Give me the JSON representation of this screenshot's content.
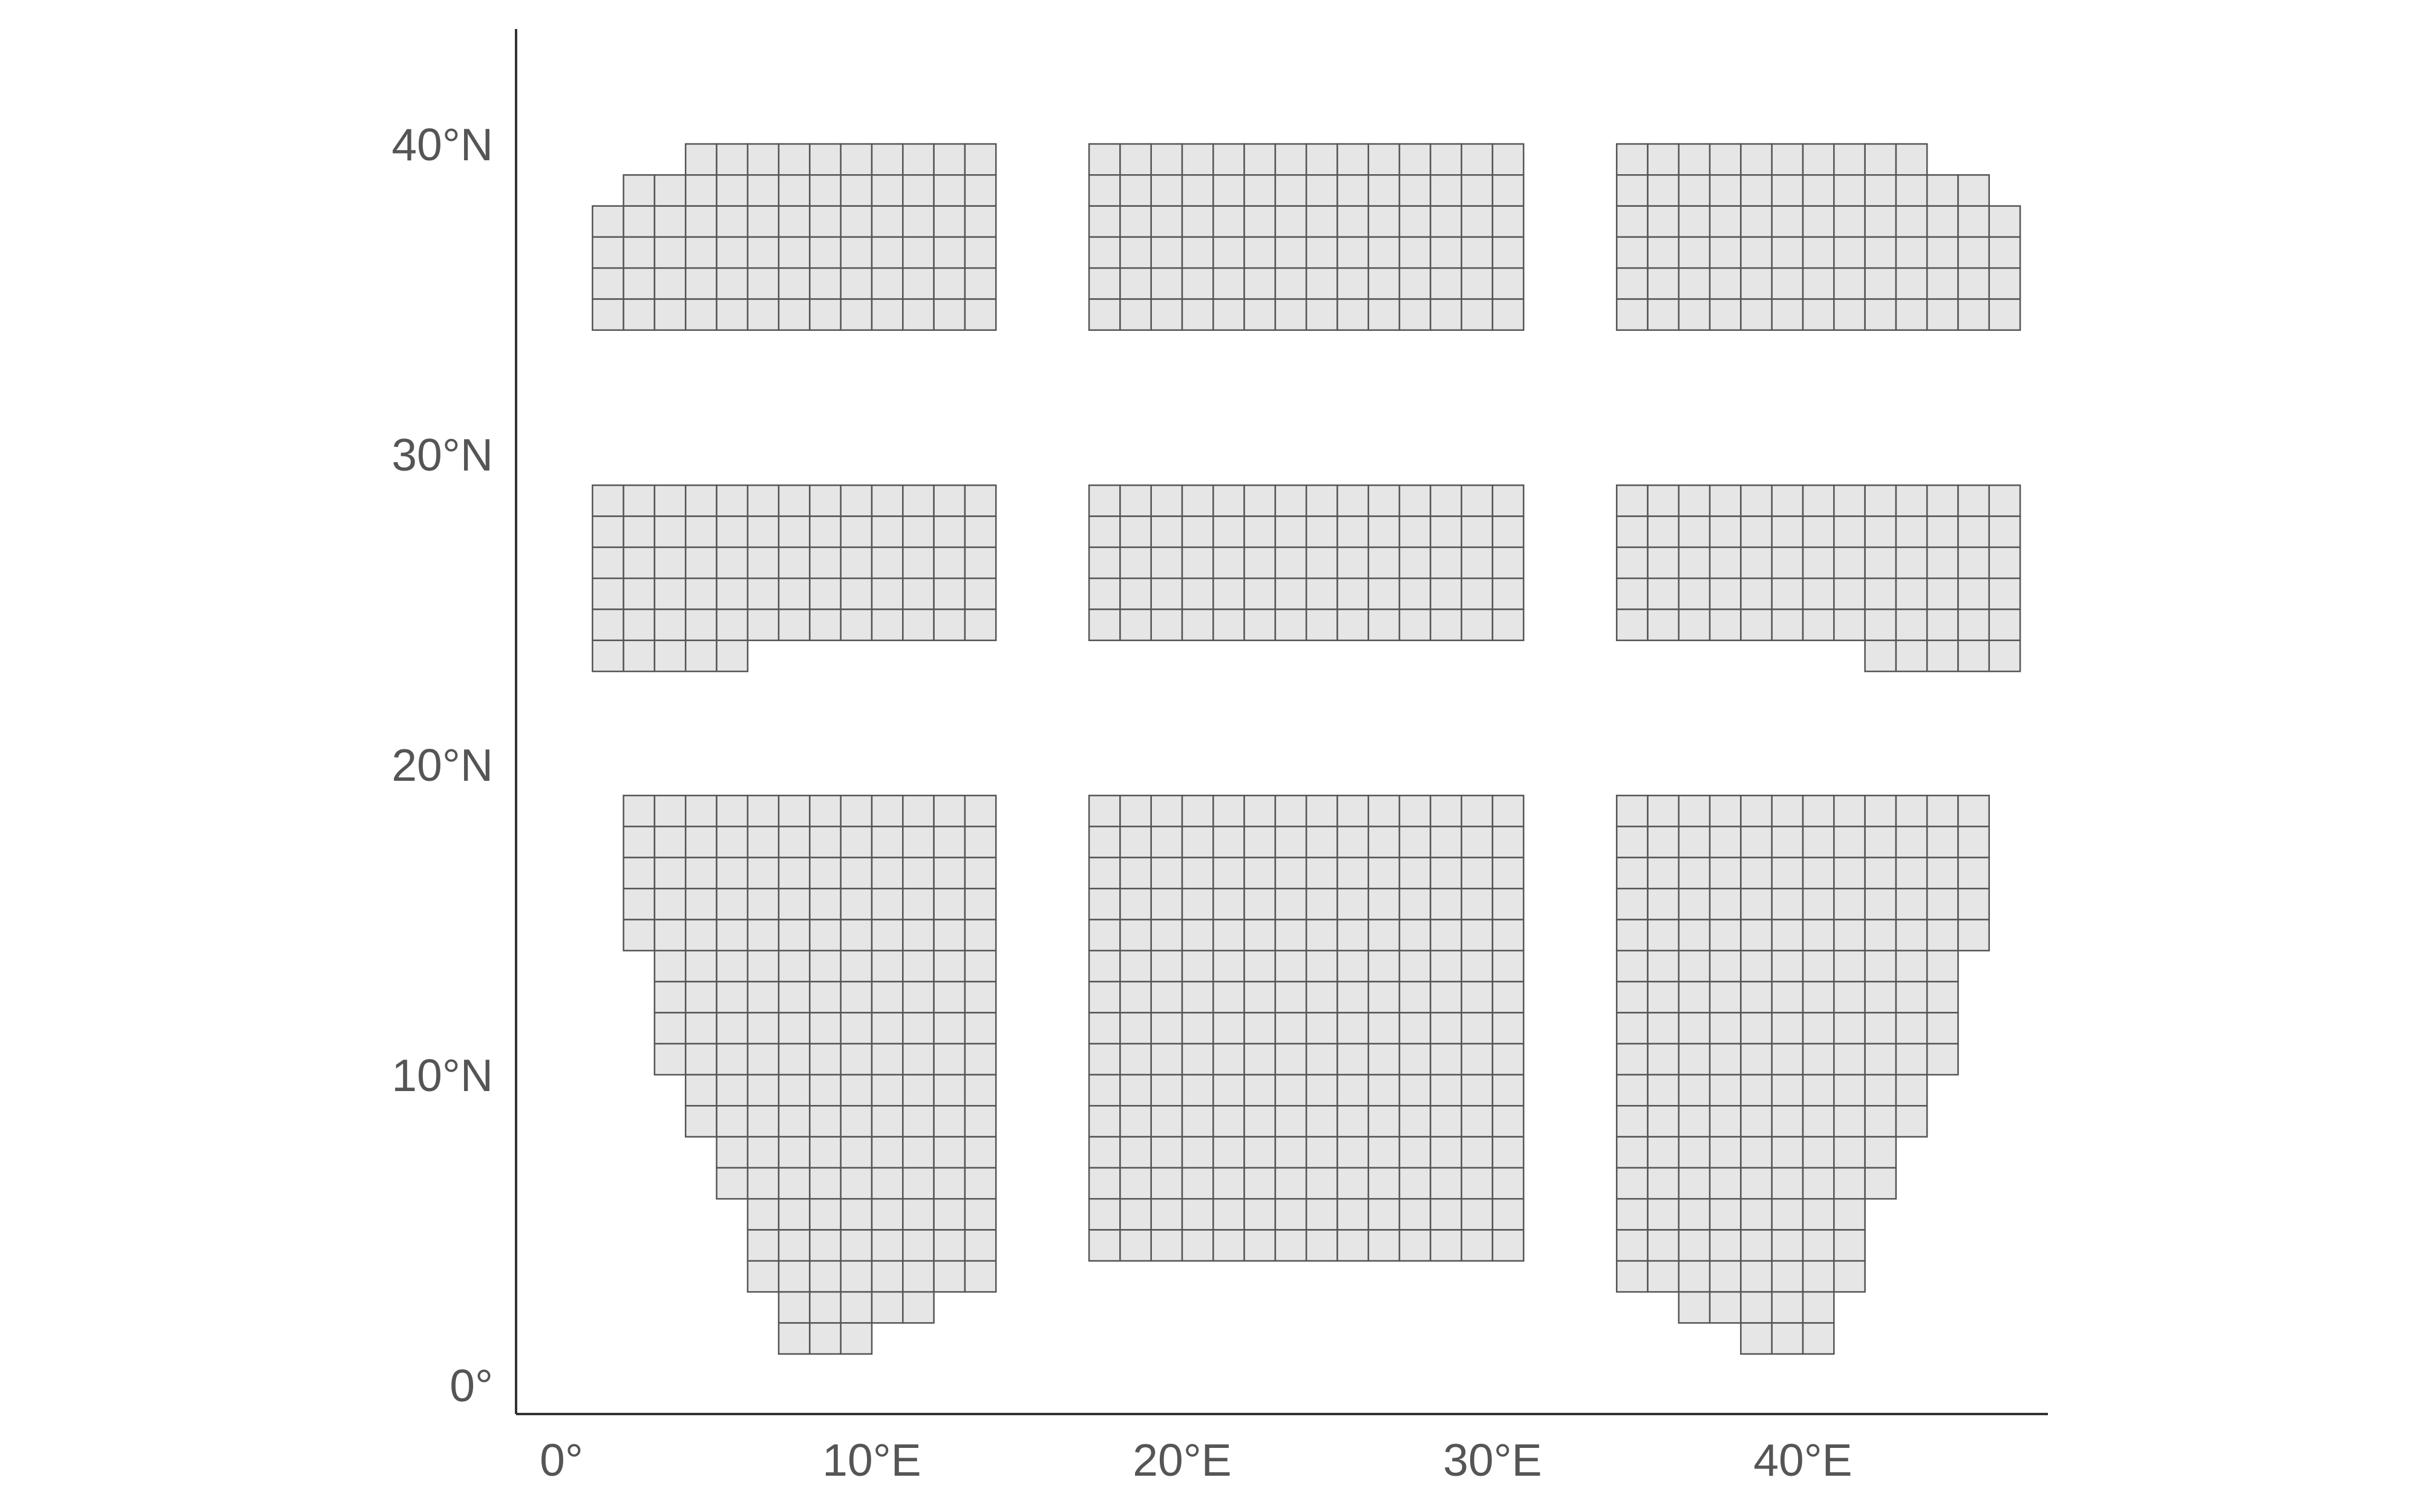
{
  "map": {
    "x_axis": {
      "ticks": [
        {
          "value": 0,
          "label": "0°"
        },
        {
          "value": 10,
          "label": "10°E"
        },
        {
          "value": 20,
          "label": "20°E"
        },
        {
          "value": 30,
          "label": "30°E"
        },
        {
          "value": 40,
          "label": "40°E"
        }
      ],
      "range": [
        -1,
        50
      ]
    },
    "y_axis": {
      "ticks": [
        {
          "value": 0,
          "label": "0°"
        },
        {
          "value": 10,
          "label": "10°N"
        },
        {
          "value": 20,
          "label": "20°N"
        },
        {
          "value": 30,
          "label": "30°N"
        },
        {
          "value": 40,
          "label": "40°N"
        }
      ],
      "range": [
        -1,
        43
      ]
    },
    "colors": {
      "cell_fill": "#e6e6e6",
      "cell_stroke": "#555555",
      "axis": "#333333",
      "label": "#555555"
    },
    "sections": [
      {
        "name": "top-left",
        "rows": [
          {
            "lat": 39,
            "lon_from": 4,
            "lon_to": 13
          },
          {
            "lat": 38,
            "lon_from": 2,
            "lon_to": 13
          },
          {
            "lat": 37,
            "lon_from": 1,
            "lon_to": 13
          },
          {
            "lat": 36,
            "lon_from": 1,
            "lon_to": 13
          },
          {
            "lat": 35,
            "lon_from": 1,
            "lon_to": 13
          },
          {
            "lat": 34,
            "lon_from": 1,
            "lon_to": 13
          }
        ]
      },
      {
        "name": "top-center",
        "rows": [
          {
            "lat": 39,
            "lon_from": 17,
            "lon_to": 30
          },
          {
            "lat": 38,
            "lon_from": 17,
            "lon_to": 30
          },
          {
            "lat": 37,
            "lon_from": 17,
            "lon_to": 30
          },
          {
            "lat": 36,
            "lon_from": 17,
            "lon_to": 30
          },
          {
            "lat": 35,
            "lon_from": 17,
            "lon_to": 30
          },
          {
            "lat": 34,
            "lon_from": 17,
            "lon_to": 30
          }
        ]
      },
      {
        "name": "top-right",
        "rows": [
          {
            "lat": 39,
            "lon_from": 34,
            "lon_to": 43
          },
          {
            "lat": 38,
            "lon_from": 34,
            "lon_to": 45
          },
          {
            "lat": 37,
            "lon_from": 34,
            "lon_to": 46
          },
          {
            "lat": 36,
            "lon_from": 34,
            "lon_to": 46
          },
          {
            "lat": 35,
            "lon_from": 34,
            "lon_to": 46
          },
          {
            "lat": 34,
            "lon_from": 34,
            "lon_to": 46
          }
        ]
      },
      {
        "name": "middle-left",
        "rows": [
          {
            "lat": 28,
            "lon_from": 1,
            "lon_to": 13
          },
          {
            "lat": 27,
            "lon_from": 1,
            "lon_to": 13
          },
          {
            "lat": 26,
            "lon_from": 1,
            "lon_to": 13
          },
          {
            "lat": 25,
            "lon_from": 1,
            "lon_to": 13
          },
          {
            "lat": 24,
            "lon_from": 1,
            "lon_to": 13
          },
          {
            "lat": 23,
            "lon_from": 1,
            "lon_to": 5
          }
        ]
      },
      {
        "name": "middle-center",
        "rows": [
          {
            "lat": 28,
            "lon_from": 17,
            "lon_to": 30
          },
          {
            "lat": 27,
            "lon_from": 17,
            "lon_to": 30
          },
          {
            "lat": 26,
            "lon_from": 17,
            "lon_to": 30
          },
          {
            "lat": 25,
            "lon_from": 17,
            "lon_to": 30
          },
          {
            "lat": 24,
            "lon_from": 17,
            "lon_to": 30
          }
        ]
      },
      {
        "name": "middle-right",
        "rows": [
          {
            "lat": 28,
            "lon_from": 34,
            "lon_to": 46
          },
          {
            "lat": 27,
            "lon_from": 34,
            "lon_to": 46
          },
          {
            "lat": 26,
            "lon_from": 34,
            "lon_to": 46
          },
          {
            "lat": 25,
            "lon_from": 34,
            "lon_to": 46
          },
          {
            "lat": 24,
            "lon_from": 34,
            "lon_to": 46
          },
          {
            "lat": 23,
            "lon_from": 42,
            "lon_to": 46
          }
        ]
      },
      {
        "name": "bottom-left",
        "rows": [
          {
            "lat": 18,
            "lon_from": 2,
            "lon_to": 13
          },
          {
            "lat": 17,
            "lon_from": 2,
            "lon_to": 13
          },
          {
            "lat": 16,
            "lon_from": 2,
            "lon_to": 13
          },
          {
            "lat": 15,
            "lon_from": 2,
            "lon_to": 13
          },
          {
            "lat": 14,
            "lon_from": 2,
            "lon_to": 13
          },
          {
            "lat": 13,
            "lon_from": 3,
            "lon_to": 13
          },
          {
            "lat": 12,
            "lon_from": 3,
            "lon_to": 13
          },
          {
            "lat": 11,
            "lon_from": 3,
            "lon_to": 13
          },
          {
            "lat": 10,
            "lon_from": 3,
            "lon_to": 13
          },
          {
            "lat": 9,
            "lon_from": 4,
            "lon_to": 13
          },
          {
            "lat": 8,
            "lon_from": 4,
            "lon_to": 13
          },
          {
            "lat": 7,
            "lon_from": 5,
            "lon_to": 13
          },
          {
            "lat": 6,
            "lon_from": 5,
            "lon_to": 13
          },
          {
            "lat": 5,
            "lon_from": 6,
            "lon_to": 13
          },
          {
            "lat": 4,
            "lon_from": 6,
            "lon_to": 13
          },
          {
            "lat": 3,
            "lon_from": 6,
            "lon_to": 13
          },
          {
            "lat": 2,
            "lon_from": 7,
            "lon_to": 11
          },
          {
            "lat": 1,
            "lon_from": 7,
            "lon_to": 9
          }
        ]
      },
      {
        "name": "bottom-center",
        "rows": [
          {
            "lat": 18,
            "lon_from": 17,
            "lon_to": 30
          },
          {
            "lat": 17,
            "lon_from": 17,
            "lon_to": 30
          },
          {
            "lat": 16,
            "lon_from": 17,
            "lon_to": 30
          },
          {
            "lat": 15,
            "lon_from": 17,
            "lon_to": 30
          },
          {
            "lat": 14,
            "lon_from": 17,
            "lon_to": 30
          },
          {
            "lat": 13,
            "lon_from": 17,
            "lon_to": 30
          },
          {
            "lat": 12,
            "lon_from": 17,
            "lon_to": 30
          },
          {
            "lat": 11,
            "lon_from": 17,
            "lon_to": 30
          },
          {
            "lat": 10,
            "lon_from": 17,
            "lon_to": 30
          },
          {
            "lat": 9,
            "lon_from": 17,
            "lon_to": 30
          },
          {
            "lat": 8,
            "lon_from": 17,
            "lon_to": 30
          },
          {
            "lat": 7,
            "lon_from": 17,
            "lon_to": 30
          },
          {
            "lat": 6,
            "lon_from": 17,
            "lon_to": 30
          },
          {
            "lat": 5,
            "lon_from": 17,
            "lon_to": 30
          },
          {
            "lat": 4,
            "lon_from": 17,
            "lon_to": 30
          }
        ]
      },
      {
        "name": "bottom-right",
        "rows": [
          {
            "lat": 18,
            "lon_from": 34,
            "lon_to": 45
          },
          {
            "lat": 17,
            "lon_from": 34,
            "lon_to": 45
          },
          {
            "lat": 16,
            "lon_from": 34,
            "lon_to": 45
          },
          {
            "lat": 15,
            "lon_from": 34,
            "lon_to": 45
          },
          {
            "lat": 14,
            "lon_from": 34,
            "lon_to": 45
          },
          {
            "lat": 13,
            "lon_from": 34,
            "lon_to": 44
          },
          {
            "lat": 12,
            "lon_from": 34,
            "lon_to": 44
          },
          {
            "lat": 11,
            "lon_from": 34,
            "lon_to": 44
          },
          {
            "lat": 10,
            "lon_from": 34,
            "lon_to": 44
          },
          {
            "lat": 9,
            "lon_from": 34,
            "lon_to": 43
          },
          {
            "lat": 8,
            "lon_from": 34,
            "lon_to": 43
          },
          {
            "lat": 7,
            "lon_from": 34,
            "lon_to": 42
          },
          {
            "lat": 6,
            "lon_from": 34,
            "lon_to": 42
          },
          {
            "lat": 5,
            "lon_from": 34,
            "lon_to": 41
          },
          {
            "lat": 4,
            "lon_from": 34,
            "lon_to": 41
          },
          {
            "lat": 3,
            "lon_from": 34,
            "lon_to": 41
          },
          {
            "lat": 2,
            "lon_from": 36,
            "lon_to": 40
          },
          {
            "lat": 1,
            "lon_from": 38,
            "lon_to": 40
          }
        ]
      }
    ]
  }
}
